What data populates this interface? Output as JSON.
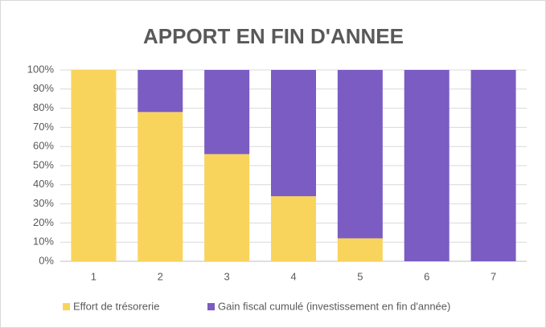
{
  "chart_data": {
    "type": "stacked_bar_100",
    "title": "APPORT EN FIN D'ANNEE",
    "categories": [
      "1",
      "2",
      "3",
      "4",
      "5",
      "6",
      "7"
    ],
    "series": [
      {
        "name": "Effort de trésorerie",
        "color": "#f9d45c",
        "values": [
          100,
          78,
          56,
          34,
          12,
          0,
          0
        ]
      },
      {
        "name": "Gain fiscal cumulé (investissement en fin d'année)",
        "color": "#7a5cc2",
        "values": [
          0,
          22,
          44,
          66,
          88,
          100,
          100
        ]
      }
    ],
    "ylim": [
      0,
      100
    ],
    "yticks": [
      {
        "value": 0,
        "label": "0%"
      },
      {
        "value": 10,
        "label": "10%"
      },
      {
        "value": 20,
        "label": "20%"
      },
      {
        "value": 30,
        "label": "30%"
      },
      {
        "value": 40,
        "label": "40%"
      },
      {
        "value": 50,
        "label": "50%"
      },
      {
        "value": 60,
        "label": "60%"
      },
      {
        "value": 70,
        "label": "70%"
      },
      {
        "value": 80,
        "label": "80%"
      },
      {
        "value": 90,
        "label": "90%"
      },
      {
        "value": 100,
        "label": "100%"
      }
    ],
    "grid": true,
    "legend": "bottom"
  }
}
